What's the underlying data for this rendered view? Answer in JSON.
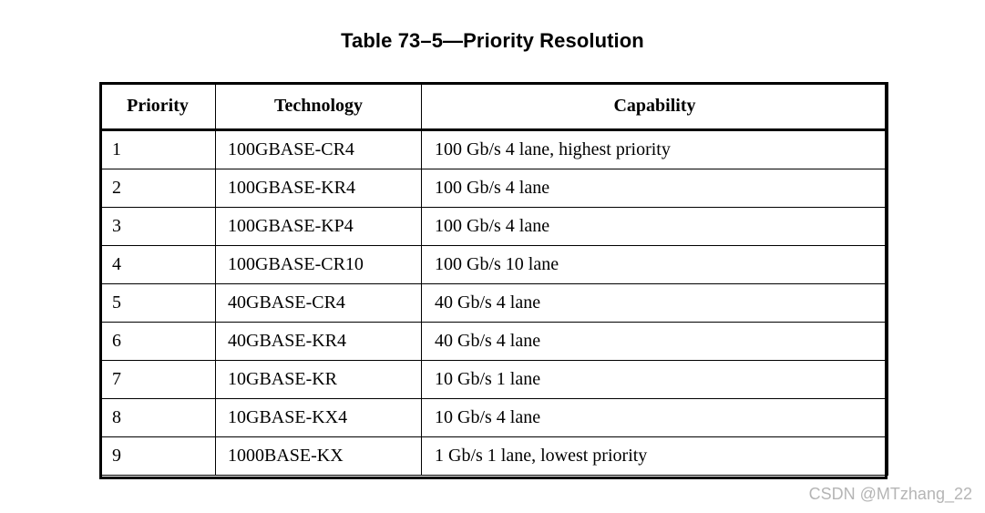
{
  "caption": "Table 73–5—Priority Resolution",
  "table": {
    "headers": [
      "Priority",
      "Technology",
      "Capability"
    ],
    "rows": [
      [
        "1",
        "100GBASE-CR4",
        "100 Gb/s 4 lane, highest priority"
      ],
      [
        "2",
        "100GBASE-KR4",
        "100 Gb/s 4 lane"
      ],
      [
        "3",
        "100GBASE-KP4",
        "100 Gb/s 4 lane"
      ],
      [
        "4",
        "100GBASE-CR10",
        "100 Gb/s 10 lane"
      ],
      [
        "5",
        "40GBASE-CR4",
        "40 Gb/s 4 lane"
      ],
      [
        "6",
        "40GBASE-KR4",
        "40 Gb/s 4 lane"
      ],
      [
        "7",
        "10GBASE-KR",
        "10 Gb/s 1 lane"
      ],
      [
        "8",
        "10GBASE-KX4",
        "10 Gb/s 4 lane"
      ],
      [
        "9",
        "1000BASE-KX",
        "1 Gb/s 1 lane, lowest priority"
      ]
    ]
  },
  "watermark": "CSDN @MTzhang_22"
}
